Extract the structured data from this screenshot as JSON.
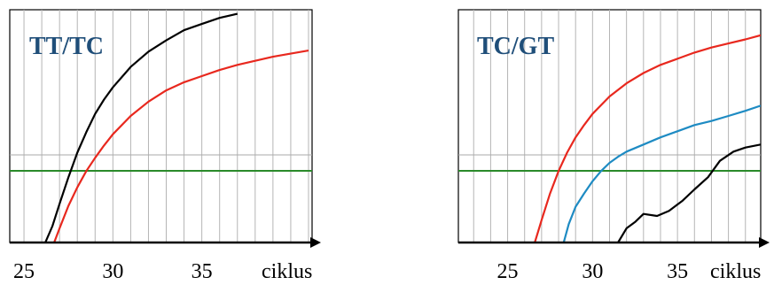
{
  "chart_data": [
    {
      "type": "line",
      "title": "TT/TC",
      "xlabel": "ciklus",
      "ylabel": "",
      "xlim": [
        24.2,
        41.2
      ],
      "x_ticks": [
        25,
        30,
        35
      ],
      "grid": true,
      "legend": "none",
      "threshold_color": "#2a8a2a",
      "series": [
        {
          "color": "#000000",
          "x": [
            26.2,
            26.6,
            27.0,
            27.5,
            28.0,
            28.5,
            29.0,
            29.5,
            30.0,
            31.0,
            32.0,
            33.0,
            34.0,
            35.0,
            36.0,
            37.0
          ],
          "y": [
            -0.4,
            0.4,
            1.5,
            2.8,
            4.0,
            5.0,
            5.9,
            6.6,
            7.2,
            8.2,
            8.95,
            9.5,
            10.0,
            10.3,
            10.6,
            10.8
          ]
        },
        {
          "color": "#e8281e",
          "x": [
            26.7,
            27.0,
            27.5,
            28.0,
            28.5,
            29.0,
            29.5,
            30.0,
            31.0,
            32.0,
            33.0,
            34.0,
            35.0,
            36.0,
            37.0,
            38.0,
            39.0,
            40.0,
            41.0
          ],
          "y": [
            -0.4,
            0.3,
            1.4,
            2.3,
            3.1,
            3.75,
            4.35,
            4.9,
            5.8,
            6.5,
            7.05,
            7.45,
            7.75,
            8.05,
            8.3,
            8.5,
            8.7,
            8.85,
            9.0
          ]
        }
      ]
    },
    {
      "type": "line",
      "title": "TC/GT",
      "xlabel": "ciklus",
      "ylabel": "",
      "xlim": [
        22.1,
        39.9
      ],
      "x_ticks": [
        25,
        30,
        35
      ],
      "grid": true,
      "legend": "none",
      "threshold_color": "#2a8a2a",
      "series": [
        {
          "color": "#e8281e",
          "x": [
            26.6,
            27.0,
            27.5,
            28.0,
            28.5,
            29.0,
            29.5,
            30.0,
            31.0,
            32.0,
            33.0,
            34.0,
            35.0,
            36.0,
            37.0,
            38.0,
            39.0,
            39.9
          ],
          "y": [
            -0.4,
            0.7,
            2.0,
            3.1,
            4.0,
            4.75,
            5.35,
            5.9,
            6.75,
            7.4,
            7.9,
            8.3,
            8.6,
            8.9,
            9.15,
            9.35,
            9.55,
            9.75
          ]
        },
        {
          "color": "#1e8bc3",
          "x": [
            28.3,
            28.6,
            29.0,
            29.5,
            30.0,
            30.5,
            31.0,
            31.5,
            32.0,
            33.0,
            34.0,
            35.0,
            36.0,
            37.0,
            38.0,
            39.0,
            39.9
          ],
          "y": [
            -0.4,
            0.5,
            1.35,
            2.0,
            2.6,
            3.1,
            3.5,
            3.8,
            4.05,
            4.4,
            4.75,
            5.05,
            5.35,
            5.55,
            5.8,
            6.05,
            6.3
          ]
        },
        {
          "color": "#000000",
          "x": [
            31.5,
            32.0,
            32.5,
            33.0,
            33.8,
            34.5,
            35.3,
            36.0,
            36.8,
            37.5,
            38.3,
            39.0,
            39.9
          ],
          "y": [
            -0.4,
            0.3,
            0.6,
            1.0,
            0.9,
            1.15,
            1.65,
            2.2,
            2.8,
            3.6,
            4.05,
            4.25,
            4.4
          ]
        }
      ]
    }
  ]
}
